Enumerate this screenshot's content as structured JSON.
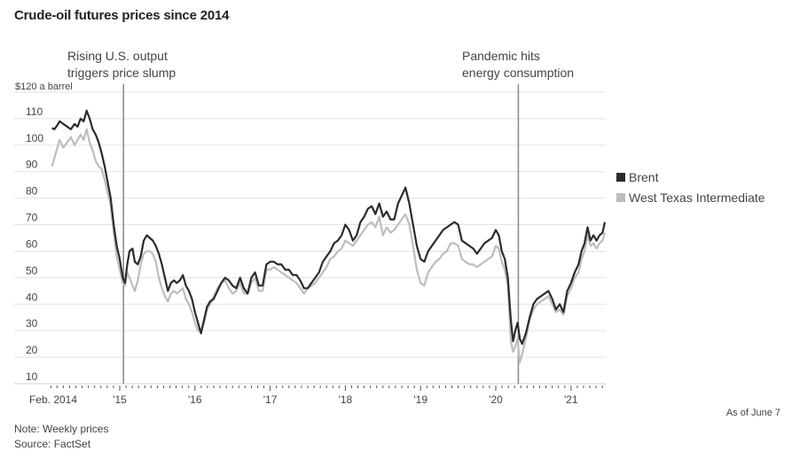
{
  "header": {
    "title": "Crude-oil futures prices since 2014"
  },
  "annotations": [
    {
      "lines": [
        "Rising U.S. output",
        "triggers price slump"
      ],
      "date": 2015.05
    },
    {
      "lines": [
        "Pandemic hits",
        "energy consumption"
      ],
      "date": 2020.3
    }
  ],
  "footer": {
    "as_of": "As of June 7",
    "note": "Note: Weekly prices",
    "source": "Source: FactSet"
  },
  "colors": {
    "brent": "#2b2b2b",
    "wti": "#bdbdbd",
    "grid": "#e2e2e2",
    "annotation_line": "#888888"
  },
  "chart_data": {
    "type": "line",
    "title": "Crude-oil futures prices since 2014",
    "ylabel": "$120 a barrel",
    "xlabel": "",
    "ylim": [
      10,
      120
    ],
    "xlim": [
      2014.1,
      2021.45
    ],
    "grid": true,
    "legend_position": "right",
    "yticks": [
      10,
      20,
      30,
      40,
      50,
      60,
      70,
      80,
      90,
      100,
      110,
      120
    ],
    "ytick_labels": [
      "10",
      "20",
      "30",
      "40",
      "50",
      "60",
      "70",
      "80",
      "90",
      "100",
      "110",
      "$120 a barrel"
    ],
    "xticks": [
      2014.1,
      2015,
      2016,
      2017,
      2018,
      2019,
      2020,
      2021
    ],
    "xtick_labels": [
      "Feb. 2014",
      "'15",
      "'16",
      "'17",
      "'18",
      "'19",
      "'20",
      "'21"
    ],
    "series": [
      {
        "name": "Brent",
        "x": [
          2014.1,
          2014.13,
          2014.17,
          2014.2,
          2014.25,
          2014.3,
          2014.35,
          2014.4,
          2014.44,
          2014.48,
          2014.52,
          2014.56,
          2014.6,
          2014.64,
          2014.68,
          2014.72,
          2014.76,
          2014.8,
          2014.84,
          2014.88,
          2014.92,
          2014.96,
          2015.0,
          2015.04,
          2015.07,
          2015.1,
          2015.13,
          2015.17,
          2015.2,
          2015.24,
          2015.28,
          2015.32,
          2015.36,
          2015.4,
          2015.44,
          2015.48,
          2015.52,
          2015.56,
          2015.6,
          2015.64,
          2015.68,
          2015.72,
          2015.76,
          2015.8,
          2015.84,
          2015.88,
          2015.92,
          2015.96,
          2016.0,
          2016.04,
          2016.08,
          2016.12,
          2016.16,
          2016.2,
          2016.25,
          2016.3,
          2016.35,
          2016.4,
          2016.45,
          2016.5,
          2016.55,
          2016.6,
          2016.65,
          2016.7,
          2016.75,
          2016.8,
          2016.85,
          2016.9,
          2016.95,
          2017.0,
          2017.05,
          2017.1,
          2017.15,
          2017.2,
          2017.25,
          2017.3,
          2017.35,
          2017.4,
          2017.45,
          2017.5,
          2017.55,
          2017.6,
          2017.65,
          2017.7,
          2017.75,
          2017.8,
          2017.85,
          2017.9,
          2017.95,
          2018.0,
          2018.05,
          2018.1,
          2018.15,
          2018.2,
          2018.25,
          2018.3,
          2018.35,
          2018.4,
          2018.45,
          2018.5,
          2018.55,
          2018.6,
          2018.65,
          2018.7,
          2018.75,
          2018.8,
          2018.85,
          2018.9,
          2018.95,
          2019.0,
          2019.05,
          2019.1,
          2019.15,
          2019.2,
          2019.25,
          2019.3,
          2019.35,
          2019.4,
          2019.45,
          2019.5,
          2019.55,
          2019.6,
          2019.65,
          2019.7,
          2019.75,
          2019.8,
          2019.85,
          2019.9,
          2019.95,
          2020.0,
          2020.04,
          2020.08,
          2020.12,
          2020.16,
          2020.2,
          2020.23,
          2020.26,
          2020.29,
          2020.32,
          2020.35,
          2020.4,
          2020.45,
          2020.5,
          2020.55,
          2020.6,
          2020.65,
          2020.7,
          2020.75,
          2020.8,
          2020.85,
          2020.9,
          2020.95,
          2021.0,
          2021.05,
          2021.1,
          2021.14,
          2021.18,
          2021.22,
          2021.26,
          2021.3,
          2021.34,
          2021.38,
          2021.42,
          2021.45
        ],
        "values": [
          106.5,
          106,
          107.5,
          109,
          108,
          107,
          106,
          108,
          107,
          110,
          109,
          113,
          110,
          106,
          104,
          101,
          97,
          92,
          86,
          80,
          70,
          62,
          57,
          50,
          48,
          55,
          60,
          61,
          56,
          55,
          58,
          64,
          66,
          65,
          64,
          62,
          59,
          55,
          50,
          45,
          48,
          49,
          48,
          49,
          51,
          47,
          45,
          42,
          37,
          33,
          29,
          34,
          39,
          41,
          42,
          45,
          48,
          50,
          49,
          47,
          46,
          50,
          46,
          44,
          50,
          52,
          47,
          47,
          55,
          56,
          56,
          55,
          55,
          53,
          53,
          51,
          51,
          49,
          46,
          46,
          48,
          50,
          52,
          56,
          58,
          60,
          63,
          64,
          66,
          70,
          68,
          64,
          66,
          71,
          73,
          76,
          77,
          74,
          78,
          73,
          75,
          72,
          72,
          78,
          81,
          84,
          78,
          70,
          62,
          57,
          56,
          60,
          62,
          64,
          66,
          68,
          69,
          70,
          71,
          70,
          64,
          63,
          62,
          61,
          59,
          61,
          63,
          64,
          65,
          68,
          66,
          60,
          57,
          50,
          34,
          26,
          30,
          33,
          27,
          25,
          29,
          35,
          40,
          42,
          43,
          44,
          45,
          42,
          38,
          40,
          37,
          45,
          48,
          52,
          55,
          60,
          63,
          69,
          64,
          66,
          64,
          66,
          67,
          71
        ]
      },
      {
        "name": "West Texas Intermediate",
        "x": [
          2014.1,
          2014.13,
          2014.17,
          2014.2,
          2014.25,
          2014.3,
          2014.35,
          2014.4,
          2014.44,
          2014.48,
          2014.52,
          2014.56,
          2014.6,
          2014.64,
          2014.68,
          2014.72,
          2014.76,
          2014.8,
          2014.84,
          2014.88,
          2014.92,
          2014.96,
          2015.0,
          2015.04,
          2015.07,
          2015.1,
          2015.13,
          2015.17,
          2015.2,
          2015.24,
          2015.28,
          2015.32,
          2015.36,
          2015.4,
          2015.44,
          2015.48,
          2015.52,
          2015.56,
          2015.6,
          2015.64,
          2015.68,
          2015.72,
          2015.76,
          2015.8,
          2015.84,
          2015.88,
          2015.92,
          2015.96,
          2016.0,
          2016.04,
          2016.08,
          2016.12,
          2016.16,
          2016.2,
          2016.25,
          2016.3,
          2016.35,
          2016.4,
          2016.45,
          2016.5,
          2016.55,
          2016.6,
          2016.65,
          2016.7,
          2016.75,
          2016.8,
          2016.85,
          2016.9,
          2016.95,
          2017.0,
          2017.05,
          2017.1,
          2017.15,
          2017.2,
          2017.25,
          2017.3,
          2017.35,
          2017.4,
          2017.45,
          2017.5,
          2017.55,
          2017.6,
          2017.65,
          2017.7,
          2017.75,
          2017.8,
          2017.85,
          2017.9,
          2017.95,
          2018.0,
          2018.05,
          2018.1,
          2018.15,
          2018.2,
          2018.25,
          2018.3,
          2018.35,
          2018.4,
          2018.45,
          2018.5,
          2018.55,
          2018.6,
          2018.65,
          2018.7,
          2018.75,
          2018.8,
          2018.85,
          2018.9,
          2018.95,
          2019.0,
          2019.05,
          2019.1,
          2019.15,
          2019.2,
          2019.25,
          2019.3,
          2019.35,
          2019.4,
          2019.45,
          2019.5,
          2019.55,
          2019.6,
          2019.65,
          2019.7,
          2019.75,
          2019.8,
          2019.85,
          2019.9,
          2019.95,
          2020.0,
          2020.04,
          2020.08,
          2020.12,
          2020.16,
          2020.2,
          2020.23,
          2020.26,
          2020.29,
          2020.32,
          2020.35,
          2020.4,
          2020.45,
          2020.5,
          2020.55,
          2020.6,
          2020.65,
          2020.7,
          2020.75,
          2020.8,
          2020.85,
          2020.9,
          2020.95,
          2021.0,
          2021.05,
          2021.1,
          2021.14,
          2021.18,
          2021.22,
          2021.26,
          2021.3,
          2021.34,
          2021.38,
          2021.42,
          2021.45
        ],
        "values": [
          92,
          95,
          99,
          102,
          99,
          101,
          103,
          100,
          102,
          104,
          102,
          106,
          101,
          98,
          94,
          92,
          91,
          87,
          82,
          77,
          67,
          58,
          53,
          48,
          47,
          52,
          50,
          47,
          45,
          49,
          55,
          59,
          60,
          60,
          59,
          56,
          50,
          46,
          43,
          41,
          44,
          45,
          44,
          45,
          46,
          42,
          40,
          37,
          33,
          30,
          30,
          33,
          38,
          40,
          43,
          46,
          48,
          49,
          46,
          44,
          45,
          48,
          44,
          44,
          48,
          50,
          45,
          45,
          53,
          53,
          54,
          53,
          52,
          51,
          50,
          49,
          48,
          46,
          44,
          46,
          47,
          48,
          50,
          52,
          54,
          57,
          58,
          60,
          61,
          64,
          63,
          62,
          64,
          66,
          68,
          70,
          71,
          69,
          73,
          66,
          69,
          67,
          68,
          70,
          72,
          74,
          70,
          62,
          53,
          48,
          47,
          52,
          54,
          56,
          57,
          59,
          60,
          63,
          63,
          62,
          57,
          56,
          55,
          55,
          54,
          55,
          56,
          57,
          58,
          62,
          61,
          56,
          53,
          47,
          26,
          22,
          24,
          27,
          18,
          21,
          27,
          34,
          38,
          40,
          41,
          42,
          43,
          40,
          37,
          38,
          36,
          43,
          46,
          50,
          52,
          57,
          60,
          66,
          62,
          63,
          61,
          63,
          64,
          67
        ]
      }
    ]
  }
}
